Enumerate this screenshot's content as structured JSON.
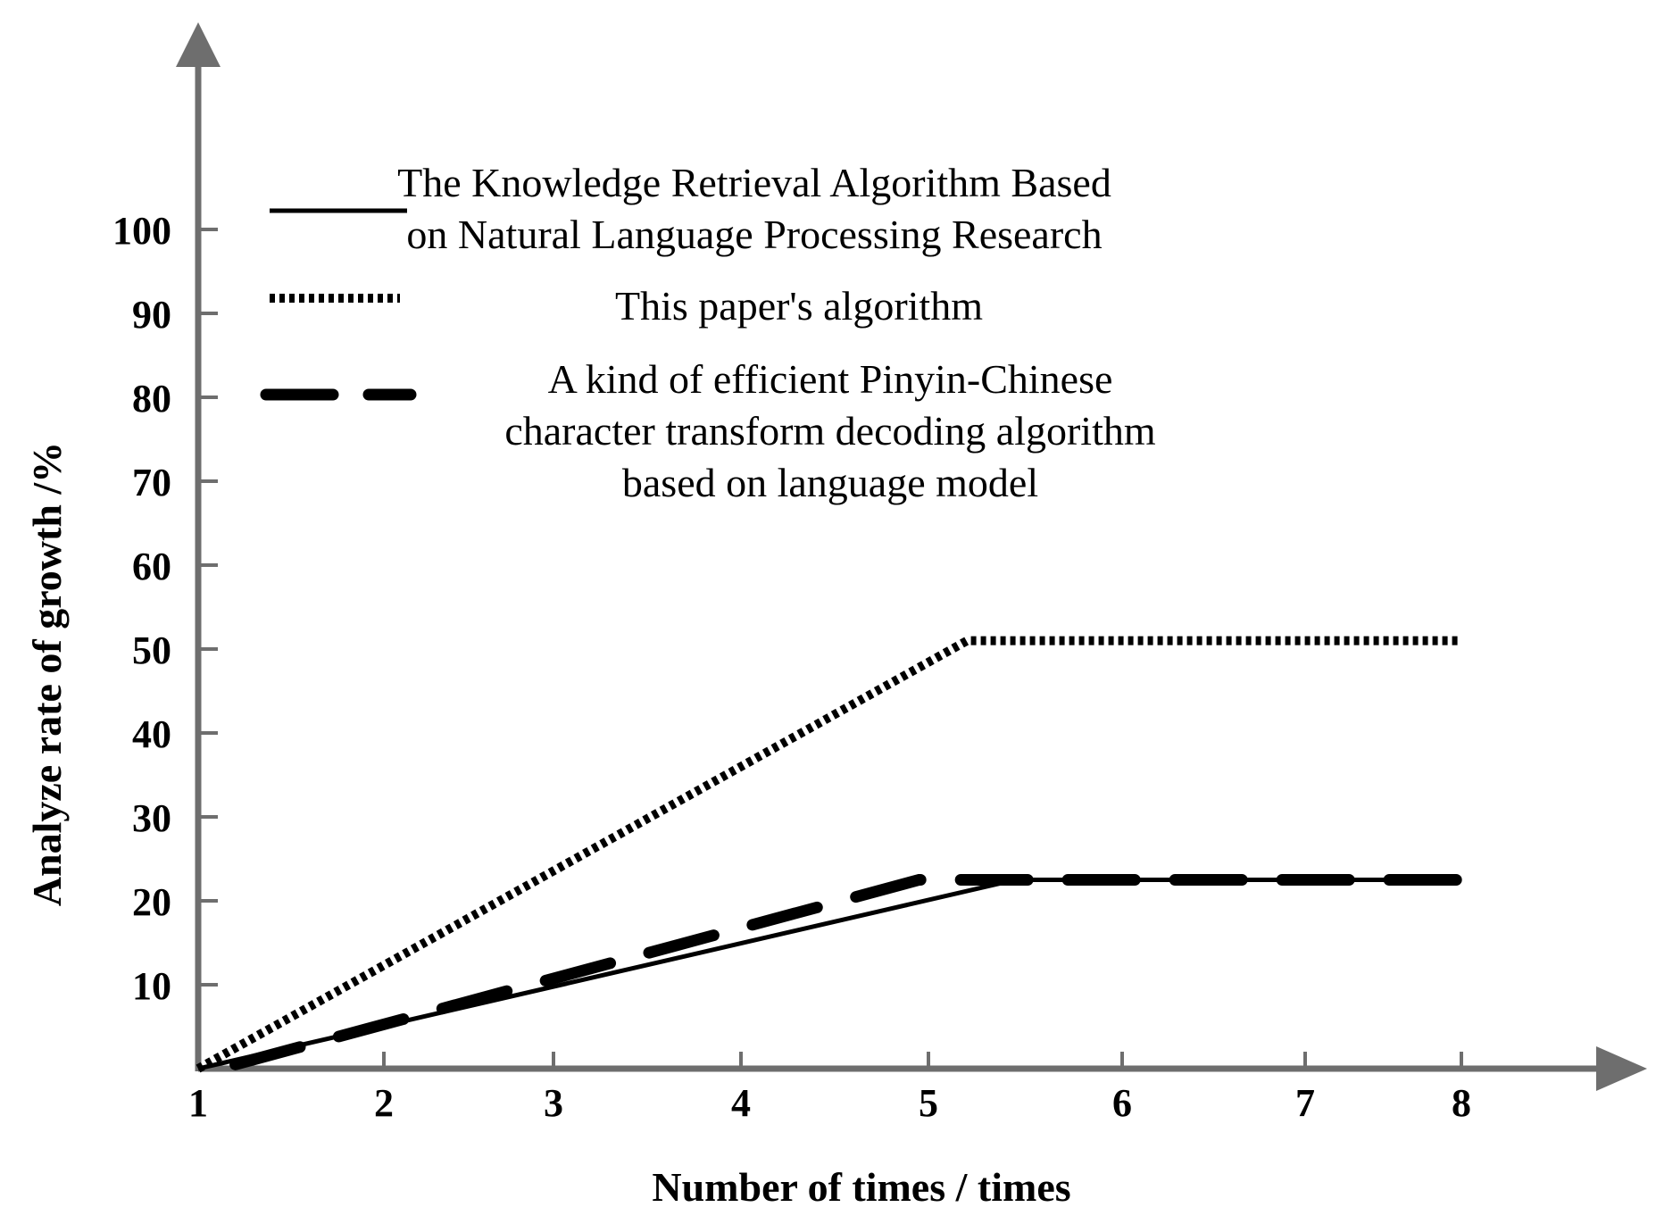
{
  "chart_data": {
    "type": "line",
    "xlabel": "Number of times / times",
    "ylabel": "Analyze rate of growth /%",
    "x_ticks": [
      "1",
      "2",
      "3",
      "4",
      "5",
      "6",
      "7",
      "8"
    ],
    "y_ticks": [
      "10",
      "20",
      "30",
      "40",
      "50",
      "60",
      "70",
      "80",
      "90",
      "100"
    ],
    "xlim": [
      1,
      8
    ],
    "ylim": [
      0,
      100
    ],
    "grid": false,
    "legend_position": "top",
    "series": [
      {
        "name": "The Knowledge Retrieval Algorithm Based on Natural Language Processing Research",
        "legend_lines": [
          "The Knowledge Retrieval Algorithm Based",
          "on Natural Language Processing Research"
        ],
        "style": "solid",
        "x": [
          1,
          5.45,
          8
        ],
        "y": [
          0,
          22.5,
          22.5
        ]
      },
      {
        "name": "This paper's algorithm",
        "legend_lines": [
          "This paper's algorithm"
        ],
        "style": "dotted",
        "x": [
          1,
          5.2,
          8
        ],
        "y": [
          0,
          51,
          51
        ]
      },
      {
        "name": "A kind of efficient Pinyin-Chinese character transform decoding algorithm based on language model",
        "legend_lines": [
          "A kind of efficient Pinyin-Chinese",
          "character transform decoding algorithm",
          "based on language model"
        ],
        "style": "dashed",
        "x": [
          1.2,
          4.95,
          8
        ],
        "y": [
          0.5,
          22.5,
          22.5
        ]
      }
    ]
  }
}
